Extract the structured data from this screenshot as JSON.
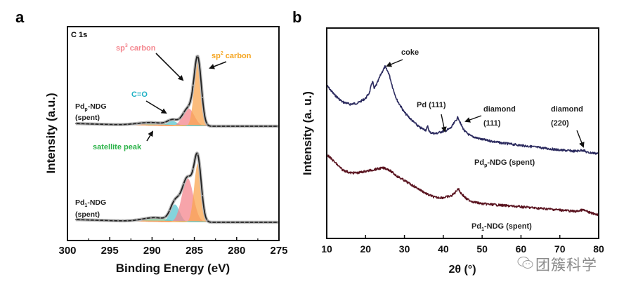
{
  "panels": {
    "a": {
      "panel_label": "a",
      "spectrum_label": "C 1s",
      "annotations": {
        "sp3": {
          "base": "sp",
          "sup": "3",
          "rest": " carbon",
          "color": "#f4868e"
        },
        "sp2": {
          "base": "sp",
          "sup": "2",
          "rest": " carbon",
          "color": "#f5a623"
        },
        "co": {
          "text": "C=O",
          "color": "#1fb0c4"
        },
        "satellite": {
          "text": "satellite peak",
          "color": "#2db34a"
        }
      },
      "sample_labels": [
        {
          "base": "Pd",
          "sub": "p",
          "rest": "-NDG",
          "line2": "(spent)"
        },
        {
          "base": "Pd",
          "sub": "1",
          "rest": "-NDG",
          "line2": "(spent)"
        }
      ]
    },
    "b": {
      "panel_label": "b",
      "annotations": {
        "coke": "coke",
        "pd111": "Pd (111)",
        "diamond111_l1": "diamond",
        "diamond111_l2": "(111)",
        "diamond220_l1": "diamond",
        "diamond220_l2": "(220)"
      },
      "sample_labels": [
        {
          "base": "Pd",
          "sub": "p",
          "rest": "-NDG (spent)"
        },
        {
          "base": "Pd",
          "sub": "1",
          "rest": "-NDG  (spent)"
        }
      ]
    }
  },
  "watermark": "团簇科学",
  "chart_data": [
    {
      "type": "area",
      "title": "C 1s",
      "xlabel": "Binding Energy (eV)",
      "ylabel": "Intensity (a.u.)",
      "xlim": [
        300,
        275
      ],
      "x_reversed": true,
      "xticks": [
        300,
        295,
        290,
        285,
        280,
        275
      ],
      "yticks": [],
      "grid": false,
      "legend": "none",
      "series": [
        {
          "name": "Pdp-NDG (spent)",
          "offset": 1.0,
          "envelope_color": "#222222",
          "components": [
            {
              "name": "sp2 carbon",
              "center": 284.6,
              "fwhm": 1.0,
              "height": 0.62,
              "color": "#f9a650"
            },
            {
              "name": "sp3 carbon",
              "center": 285.7,
              "fwhm": 1.6,
              "height": 0.17,
              "color": "#f4868e"
            },
            {
              "name": "C=O",
              "center": 287.6,
              "fwhm": 1.4,
              "height": 0.05,
              "color": "#5bc6d0"
            },
            {
              "name": "satellite peak",
              "center": 290.0,
              "fwhm": 4.0,
              "height": 0.03,
              "color": "#6fcf8a"
            }
          ]
        },
        {
          "name": "Pd1-NDG (spent)",
          "offset": 0.0,
          "envelope_color": "#222222",
          "components": [
            {
              "name": "sp2 carbon",
              "center": 284.6,
              "fwhm": 1.0,
              "height": 0.56,
              "color": "#f9a650"
            },
            {
              "name": "sp3 carbon",
              "center": 285.8,
              "fwhm": 1.6,
              "height": 0.42,
              "color": "#f4868e"
            },
            {
              "name": "C=O",
              "center": 287.3,
              "fwhm": 1.3,
              "height": 0.17,
              "color": "#5bc6d0"
            },
            {
              "name": "satellite peak",
              "center": 289.6,
              "fwhm": 3.5,
              "height": 0.04,
              "color": "#6fcf8a"
            }
          ]
        }
      ]
    },
    {
      "type": "line",
      "xlabel": "2θ (°)",
      "ylabel": "Intensity (a. u.)",
      "xlim": [
        10,
        80
      ],
      "xticks": [
        10,
        20,
        30,
        40,
        50,
        60,
        70,
        80
      ],
      "yticks": [],
      "grid": false,
      "legend": "none",
      "series": [
        {
          "name": "Pdp-NDG (spent)",
          "color": "#2b2a5e",
          "x": [
            10,
            12,
            14,
            16,
            18,
            20,
            21,
            21.8,
            22.2,
            23,
            24,
            25,
            26,
            27,
            28,
            30,
            32,
            34,
            35.5,
            36,
            36.5,
            38,
            40,
            41,
            42,
            43,
            43.8,
            44.5,
            45.5,
            47,
            50,
            55,
            60,
            65,
            70,
            74,
            76,
            77,
            80
          ],
          "y": [
            0.74,
            0.66,
            0.6,
            0.58,
            0.59,
            0.63,
            0.68,
            0.78,
            0.71,
            0.76,
            0.84,
            0.9,
            0.84,
            0.72,
            0.62,
            0.51,
            0.44,
            0.38,
            0.36,
            0.39,
            0.34,
            0.33,
            0.35,
            0.36,
            0.38,
            0.43,
            0.47,
            0.41,
            0.35,
            0.31,
            0.28,
            0.25,
            0.23,
            0.21,
            0.19,
            0.18,
            0.19,
            0.17,
            0.16
          ]
        },
        {
          "name": "Pd1-NDG (spent)",
          "color": "#5a1420",
          "x": [
            10,
            12,
            14,
            16,
            18,
            20,
            22,
            24,
            25,
            26,
            28,
            30,
            32,
            34,
            36,
            38,
            40,
            42,
            43,
            43.8,
            44.5,
            46,
            48,
            50,
            55,
            60,
            65,
            70,
            74,
            76,
            78,
            80
          ],
          "y": [
            0.34,
            0.29,
            0.24,
            0.22,
            0.22,
            0.23,
            0.24,
            0.25,
            0.25,
            0.24,
            0.2,
            0.17,
            0.14,
            0.11,
            0.08,
            0.06,
            0.06,
            0.07,
            0.09,
            0.12,
            0.09,
            0.05,
            0.03,
            0.02,
            0.01,
            0.0,
            -0.01,
            -0.02,
            -0.03,
            -0.02,
            -0.04,
            -0.05
          ]
        }
      ]
    }
  ]
}
